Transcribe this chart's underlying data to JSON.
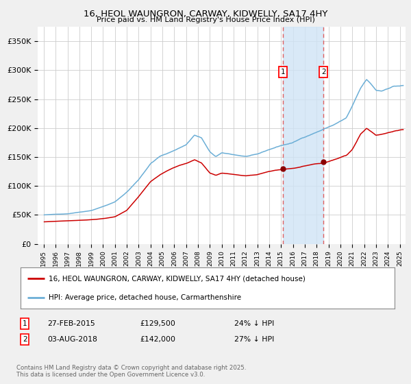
{
  "title": "16, HEOL WAUNGRON, CARWAY, KIDWELLY, SA17 4HY",
  "subtitle": "Price paid vs. HM Land Registry's House Price Index (HPI)",
  "legend_line1": "16, HEOL WAUNGRON, CARWAY, KIDWELLY, SA17 4HY (detached house)",
  "legend_line2": "HPI: Average price, detached house, Carmarthenshire",
  "annotation1_label": "1",
  "annotation1_date": "27-FEB-2015",
  "annotation1_price": "£129,500",
  "annotation1_hpi": "24% ↓ HPI",
  "annotation2_label": "2",
  "annotation2_date": "03-AUG-2018",
  "annotation2_price": "£142,000",
  "annotation2_hpi": "27% ↓ HPI",
  "footer": "Contains HM Land Registry data © Crown copyright and database right 2025.\nThis data is licensed under the Open Government Licence v3.0.",
  "vline1_x": 2015.15,
  "vline2_x": 2018.58,
  "hpi_color": "#6baed6",
  "price_color": "#cc0000",
  "background_color": "#f0f0f0",
  "plot_bg_color": "#ffffff",
  "grid_color": "#cccccc",
  "shade_color": "#d0e4f5",
  "ylim": [
    0,
    375000
  ],
  "xlim": [
    1994.5,
    2025.5
  ],
  "yticks": [
    0,
    50000,
    100000,
    150000,
    200000,
    250000,
    300000,
    350000
  ],
  "ytick_labels": [
    "£0",
    "£50K",
    "£100K",
    "£150K",
    "£200K",
    "£250K",
    "£300K",
    "£350K"
  ],
  "hpi_trend": [
    [
      1995.0,
      50000
    ],
    [
      1996.0,
      51000
    ],
    [
      1997.0,
      52000
    ],
    [
      1998.0,
      55000
    ],
    [
      1999.0,
      58000
    ],
    [
      2000.0,
      65000
    ],
    [
      2001.0,
      73000
    ],
    [
      2002.0,
      90000
    ],
    [
      2003.0,
      112000
    ],
    [
      2004.0,
      140000
    ],
    [
      2004.8,
      153000
    ],
    [
      2005.5,
      158000
    ],
    [
      2006.0,
      163000
    ],
    [
      2007.0,
      173000
    ],
    [
      2007.7,
      190000
    ],
    [
      2008.3,
      185000
    ],
    [
      2009.0,
      160000
    ],
    [
      2009.5,
      152000
    ],
    [
      2010.0,
      158000
    ],
    [
      2011.0,
      155000
    ],
    [
      2012.0,
      152000
    ],
    [
      2013.0,
      155000
    ],
    [
      2014.0,
      163000
    ],
    [
      2015.0,
      170000
    ],
    [
      2016.0,
      175000
    ],
    [
      2017.0,
      185000
    ],
    [
      2017.8,
      192000
    ],
    [
      2018.5,
      198000
    ],
    [
      2019.5,
      207000
    ],
    [
      2020.5,
      218000
    ],
    [
      2021.0,
      238000
    ],
    [
      2021.7,
      268000
    ],
    [
      2022.2,
      283000
    ],
    [
      2022.7,
      272000
    ],
    [
      2023.0,
      264000
    ],
    [
      2023.5,
      263000
    ],
    [
      2024.0,
      268000
    ],
    [
      2024.5,
      272000
    ],
    [
      2025.3,
      273000
    ]
  ],
  "price_trend": [
    [
      1995.0,
      38000
    ],
    [
      1996.0,
      39000
    ],
    [
      1997.0,
      40000
    ],
    [
      1998.0,
      41000
    ],
    [
      1999.0,
      42000
    ],
    [
      2000.0,
      44000
    ],
    [
      2001.0,
      47000
    ],
    [
      2002.0,
      58000
    ],
    [
      2003.0,
      82000
    ],
    [
      2004.0,
      108000
    ],
    [
      2004.8,
      120000
    ],
    [
      2005.5,
      128000
    ],
    [
      2006.0,
      133000
    ],
    [
      2007.0,
      140000
    ],
    [
      2007.7,
      146000
    ],
    [
      2008.3,
      140000
    ],
    [
      2009.0,
      122000
    ],
    [
      2009.5,
      118000
    ],
    [
      2010.0,
      122000
    ],
    [
      2011.0,
      120000
    ],
    [
      2012.0,
      118000
    ],
    [
      2013.0,
      120000
    ],
    [
      2014.0,
      126000
    ],
    [
      2015.15,
      129500
    ],
    [
      2016.0,
      132000
    ],
    [
      2017.0,
      136000
    ],
    [
      2017.8,
      140000
    ],
    [
      2018.58,
      142000
    ],
    [
      2019.5,
      148000
    ],
    [
      2020.5,
      155000
    ],
    [
      2021.0,
      165000
    ],
    [
      2021.7,
      193000
    ],
    [
      2022.2,
      203000
    ],
    [
      2022.7,
      196000
    ],
    [
      2023.0,
      191000
    ],
    [
      2023.5,
      193000
    ],
    [
      2024.0,
      196000
    ],
    [
      2024.5,
      199000
    ],
    [
      2025.3,
      201000
    ]
  ]
}
